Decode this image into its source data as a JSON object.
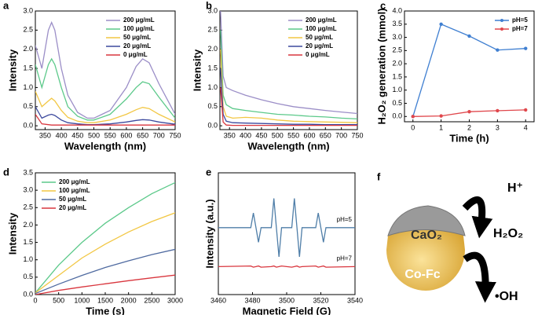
{
  "chart_data": [
    {
      "type": "line",
      "label": "a",
      "xlabel": "Wavelength (nm)",
      "ylabel": "Intensity",
      "x": [
        320,
        340,
        360,
        370,
        380,
        400,
        420,
        450,
        480,
        500,
        550,
        600,
        630,
        650,
        670,
        700,
        750
      ],
      "xlim": [
        320,
        750
      ],
      "xticks": [
        350,
        400,
        450,
        500,
        550,
        600,
        650,
        700,
        750
      ],
      "ylim": [
        -0.1,
        3.0
      ],
      "yticks": [
        {
          "value": 0,
          "label": "0.0"
        },
        0.5,
        {
          "value": 1,
          "label": "1.0"
        },
        1.5,
        {
          "value": 2,
          "label": "2.0"
        },
        2.5,
        {
          "value": 3,
          "label": "3.0"
        }
      ],
      "legend": "upper right",
      "series": [
        {
          "name": "200 μg/mL",
          "color": "#9b8ec7",
          "values": [
            2.1,
            1.5,
            2.5,
            2.7,
            2.5,
            1.5,
            0.8,
            0.35,
            0.2,
            0.2,
            0.4,
            1.0,
            1.55,
            1.75,
            1.65,
            1.1,
            0.3
          ]
        },
        {
          "name": "100 μg/mL",
          "color": "#5cc98a",
          "values": [
            1.6,
            1.0,
            1.6,
            1.75,
            1.6,
            1.0,
            0.5,
            0.25,
            0.15,
            0.15,
            0.3,
            0.7,
            1.0,
            1.15,
            1.1,
            0.75,
            0.2
          ]
        },
        {
          "name": "50 μg/mL",
          "color": "#f2c744",
          "values": [
            0.9,
            0.5,
            0.65,
            0.72,
            0.65,
            0.4,
            0.22,
            0.12,
            0.08,
            0.08,
            0.15,
            0.3,
            0.42,
            0.48,
            0.45,
            0.3,
            0.1
          ]
        },
        {
          "name": "20 μg/mL",
          "color": "#3d4a9e",
          "values": [
            0.5,
            0.2,
            0.28,
            0.3,
            0.27,
            0.15,
            0.08,
            0.05,
            0.03,
            0.03,
            0.05,
            0.1,
            0.14,
            0.16,
            0.15,
            0.1,
            0.04
          ]
        },
        {
          "name": "0 μg/mL",
          "color": "#d9363e",
          "values": [
            0.3,
            0.05,
            0.03,
            0.02,
            0.02,
            0.02,
            0.02,
            0.02,
            0.02,
            0.02,
            0.02,
            0.02,
            0.02,
            0.02,
            0.02,
            0.02,
            0.02
          ]
        }
      ]
    },
    {
      "type": "line",
      "label": "b",
      "xlabel": "Wavelength (nm)",
      "ylabel": "Intensity",
      "x": [
        322,
        330,
        340,
        360,
        400,
        450,
        500,
        550,
        600,
        650,
        700,
        750
      ],
      "xlim": [
        320,
        750
      ],
      "xticks": [
        350,
        400,
        450,
        500,
        550,
        600,
        650,
        700,
        750
      ],
      "ylim": [
        -0.1,
        3.0
      ],
      "yticks": [
        {
          "value": 0,
          "label": "0.0"
        },
        0.5,
        {
          "value": 1,
          "label": "1.0"
        },
        1.5,
        {
          "value": 2,
          "label": "2.0"
        },
        2.5,
        {
          "value": 3,
          "label": "3.0"
        }
      ],
      "legend": "upper right",
      "series": [
        {
          "name": "200 μg/mL",
          "color": "#9b8ec7",
          "values": [
            3.0,
            1.3,
            1.0,
            0.92,
            0.8,
            0.68,
            0.58,
            0.5,
            0.45,
            0.4,
            0.36,
            0.32
          ]
        },
        {
          "name": "100 μg/mL",
          "color": "#5cc98a",
          "values": [
            2.5,
            0.8,
            0.55,
            0.45,
            0.4,
            0.35,
            0.3,
            0.28,
            0.25,
            0.23,
            0.2,
            0.18
          ]
        },
        {
          "name": "50 μg/mL",
          "color": "#f2c744",
          "values": [
            2.0,
            0.5,
            0.25,
            0.2,
            0.22,
            0.2,
            0.15,
            0.12,
            0.11,
            0.1,
            0.09,
            0.08
          ]
        },
        {
          "name": "20 μg/mL",
          "color": "#3d4a9e",
          "values": [
            1.5,
            0.3,
            0.12,
            0.08,
            0.07,
            0.06,
            0.05,
            0.04,
            0.04,
            0.03,
            0.03,
            0.03
          ]
        },
        {
          "name": "0 μg/mL",
          "color": "#d9363e",
          "values": [
            1.0,
            0.1,
            0.02,
            0.01,
            0.01,
            0.01,
            0.01,
            0.01,
            0.01,
            0.01,
            0.01,
            0.01
          ]
        }
      ]
    },
    {
      "type": "line",
      "label": "c",
      "xlabel": "Time (h)",
      "ylabel": "H₂O₂ generation (mmol)",
      "x": [
        0,
        1,
        2,
        3,
        4
      ],
      "xlim": [
        -0.3,
        4.3
      ],
      "xticks": [
        0,
        1,
        2,
        3,
        4
      ],
      "ylim": [
        -0.2,
        4.0
      ],
      "yticks": [
        {
          "value": 0,
          "label": "0.0"
        },
        0.5,
        {
          "value": 1,
          "label": "1.0"
        },
        1.5,
        {
          "value": 2,
          "label": "2.0"
        },
        2.5,
        {
          "value": 3,
          "label": "3.0"
        },
        3.5,
        {
          "value": 4,
          "label": "4.0"
        }
      ],
      "legend": "upper right",
      "markers": true,
      "series": [
        {
          "name": "pH=5",
          "color": "#3f7fd1",
          "values": [
            0,
            3.5,
            3.05,
            2.52,
            2.58
          ]
        },
        {
          "name": "pH=7",
          "color": "#e0474c",
          "values": [
            0,
            0.02,
            0.18,
            0.22,
            0.25
          ]
        }
      ]
    },
    {
      "type": "line",
      "label": "d",
      "xlabel": "Time (s)",
      "ylabel": "Intensity",
      "x": [
        0,
        500,
        1000,
        1500,
        2000,
        2500,
        3000
      ],
      "xlim": [
        0,
        3000
      ],
      "xticks": [
        0,
        500,
        1000,
        1500,
        2000,
        2500,
        3000
      ],
      "ylim": [
        0,
        3.5
      ],
      "yticks": [
        {
          "value": 0,
          "label": "0.0"
        },
        0.5,
        {
          "value": 1,
          "label": "1.0"
        },
        1.5,
        {
          "value": 2,
          "label": "2.0"
        },
        2.5,
        {
          "value": 3,
          "label": "3.0"
        },
        3.5
      ],
      "legend": "upper left",
      "series": [
        {
          "name": "200 μg/mL",
          "color": "#5cc98a",
          "values": [
            0.05,
            0.85,
            1.5,
            2.05,
            2.5,
            2.9,
            3.22
          ]
        },
        {
          "name": "100 μg/mL",
          "color": "#f2c744",
          "values": [
            0.05,
            0.55,
            1.05,
            1.45,
            1.8,
            2.1,
            2.35
          ]
        },
        {
          "name": "50 μg/mL",
          "color": "#4f6aa0",
          "values": [
            0.03,
            0.3,
            0.55,
            0.78,
            0.97,
            1.15,
            1.3
          ]
        },
        {
          "name": "20 μg/mL",
          "color": "#d9363e",
          "values": [
            0,
            0.12,
            0.22,
            0.31,
            0.4,
            0.48,
            0.56
          ]
        }
      ]
    },
    {
      "type": "line",
      "label": "e",
      "xlabel": "Magnetic Field (G)",
      "ylabel": "Intensity (a.u.)",
      "x": [
        3460,
        3479,
        3480.5,
        3482,
        3483.5,
        3485,
        3491,
        3492.5,
        3494,
        3495.5,
        3497,
        3503,
        3504.5,
        3506,
        3507.5,
        3509,
        3517,
        3518.5,
        3520,
        3521.5,
        3523,
        3540
      ],
      "xlim": [
        3460,
        3540
      ],
      "xticks": [
        3460,
        3480,
        3500,
        3520,
        3540
      ],
      "ylim": [
        0,
        1
      ],
      "legend": "inline",
      "series": [
        {
          "name": "pH=5",
          "color": "#4f7ea8",
          "values": [
            0.55,
            0.55,
            0.67,
            0.55,
            0.43,
            0.55,
            0.55,
            0.79,
            0.55,
            0.31,
            0.55,
            0.55,
            0.79,
            0.55,
            0.31,
            0.55,
            0.55,
            0.67,
            0.55,
            0.43,
            0.55,
            0.55
          ]
        },
        {
          "name": "pH=7",
          "color": "#d9363e",
          "values": [
            0.23,
            0.235,
            0.225,
            0.23,
            0.235,
            0.225,
            0.23,
            0.235,
            0.225,
            0.23,
            0.235,
            0.225,
            0.23,
            0.235,
            0.225,
            0.23,
            0.235,
            0.225,
            0.23,
            0.235,
            0.225,
            0.23
          ]
        }
      ]
    }
  ],
  "diagram": {
    "label": "f",
    "shell": "CaO₂",
    "core": "Co-Fc",
    "input": "H⁺",
    "product": "H₂O₂",
    "radical": "•OH"
  }
}
